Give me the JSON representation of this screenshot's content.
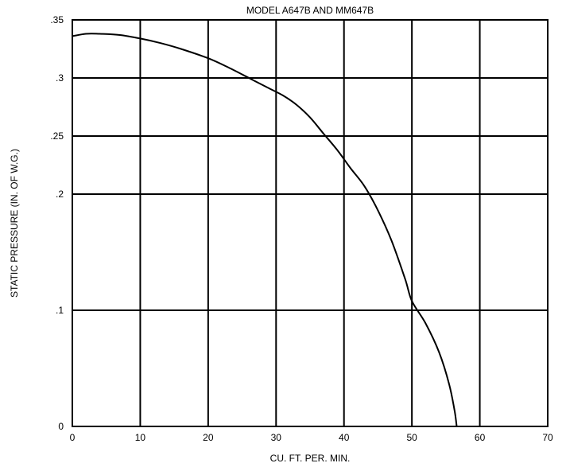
{
  "chart_data": {
    "type": "line",
    "title": "MODEL A647B AND MM647B",
    "xlabel": "CU. FT. PER. MIN.",
    "ylabel": "STATIC PRESSURE (IN. OF W.G.)",
    "xlim": [
      0,
      70
    ],
    "ylim": [
      0,
      0.35
    ],
    "grid": true,
    "x_ticks": [
      "0",
      "10",
      "20",
      "30",
      "40",
      "50",
      "60",
      "70"
    ],
    "y_ticks": [
      "0",
      ".1",
      ".2",
      ".25",
      ".3",
      ".35"
    ],
    "series": [
      {
        "color": "#000000",
        "points": [
          [
            0,
            0.336
          ],
          [
            2,
            0.338
          ],
          [
            4,
            0.338
          ],
          [
            7,
            0.337
          ],
          [
            10,
            0.334
          ],
          [
            13,
            0.33
          ],
          [
            16,
            0.325
          ],
          [
            20,
            0.317
          ],
          [
            23,
            0.309
          ],
          [
            26,
            0.3
          ],
          [
            29,
            0.291
          ],
          [
            31,
            0.285
          ],
          [
            33,
            0.277
          ],
          [
            35,
            0.266
          ],
          [
            37,
            0.252
          ],
          [
            39,
            0.238
          ],
          [
            41,
            0.222
          ],
          [
            43,
            0.207
          ],
          [
            45,
            0.186
          ],
          [
            47,
            0.16
          ],
          [
            49,
            0.127
          ],
          [
            50,
            0.108
          ],
          [
            52,
            0.089
          ],
          [
            54,
            0.064
          ],
          [
            55.5,
            0.036
          ],
          [
            56.3,
            0.013
          ],
          [
            56.6,
            0.0
          ]
        ]
      }
    ]
  }
}
